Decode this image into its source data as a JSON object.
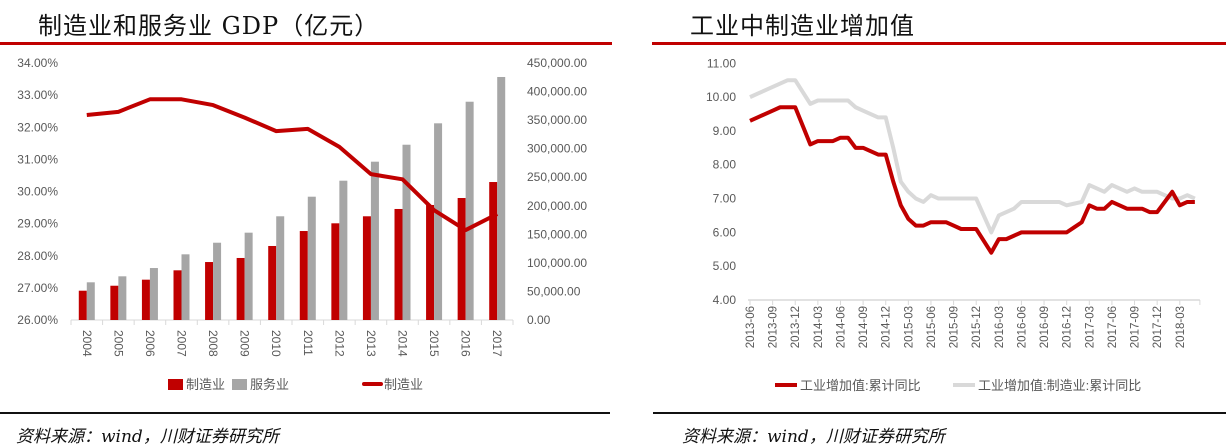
{
  "left_panel": {
    "title": "制造业和服务业 GDP（亿元）",
    "source": "资料来源：wind，川财证券研究所"
  },
  "right_panel": {
    "title": "工业中制造业增加值",
    "source": "资料来源：wind，川财证券研究所"
  },
  "colors": {
    "red": "#c00000",
    "grey": "#a6a6a6",
    "light_grey": "#d9d9d9"
  },
  "chart_data": [
    {
      "type": "bar",
      "title": "制造业和服务业 GDP（亿元）",
      "categories": [
        "2004",
        "2005",
        "2006",
        "2007",
        "2008",
        "2009",
        "2010",
        "2011",
        "2012",
        "2013",
        "2014",
        "2015",
        "2016",
        "2017"
      ],
      "series": [
        {
          "name": "制造业",
          "kind": "bar",
          "axis": "right",
          "values": [
            51300,
            60000,
            70600,
            87000,
            101500,
            108600,
            129600,
            155800,
            169300,
            181600,
            194400,
            201400,
            213600,
            241600
          ]
        },
        {
          "name": "服务业",
          "kind": "bar",
          "axis": "right",
          "values": [
            66000,
            76500,
            91000,
            115000,
            135300,
            152900,
            181600,
            215900,
            243900,
            277200,
            306900,
            344400,
            382200,
            425500
          ]
        },
        {
          "name": "制造业",
          "kind": "line",
          "axis": "left",
          "values": [
            32.38,
            32.48,
            32.87,
            32.87,
            32.69,
            32.3,
            31.88,
            31.95,
            31.39,
            30.54,
            30.38,
            29.42,
            28.8,
            29.3
          ]
        }
      ],
      "left_axis": {
        "ylim": [
          26,
          34
        ],
        "ticks": [
          "26.00%",
          "27.00%",
          "28.00%",
          "29.00%",
          "30.00%",
          "31.00%",
          "32.00%",
          "33.00%",
          "34.00%"
        ]
      },
      "right_axis": {
        "ylim": [
          0,
          450000
        ],
        "ticks": [
          "0.00",
          "50,000.00",
          "100,000.00",
          "150,000.00",
          "200,000.00",
          "250,000.00",
          "300,000.00",
          "350,000.00",
          "400,000.00",
          "450,000.00"
        ]
      },
      "legend": "bottom"
    },
    {
      "type": "line",
      "title": "工业中制造业增加值",
      "x": [
        "2013-06",
        "2013-07",
        "2013-08",
        "2013-09",
        "2013-10",
        "2013-11",
        "2013-12",
        "2014-01",
        "2014-02",
        "2014-03",
        "2014-04",
        "2014-05",
        "2014-06",
        "2014-07",
        "2014-08",
        "2014-09",
        "2014-10",
        "2014-11",
        "2014-12",
        "2015-01",
        "2015-02",
        "2015-03",
        "2015-04",
        "2015-05",
        "2015-06",
        "2015-07",
        "2015-08",
        "2015-09",
        "2015-10",
        "2015-11",
        "2015-12",
        "2016-01",
        "2016-02",
        "2016-03",
        "2016-04",
        "2016-05",
        "2016-06",
        "2016-07",
        "2016-08",
        "2016-09",
        "2016-10",
        "2016-11",
        "2016-12",
        "2017-01",
        "2017-02",
        "2017-03",
        "2017-04",
        "2017-05",
        "2017-06",
        "2017-07",
        "2017-08",
        "2017-09",
        "2017-10",
        "2017-11",
        "2017-12",
        "2018-01",
        "2018-02",
        "2018-03",
        "2018-04",
        "2018-05"
      ],
      "x_tick_labels": [
        "2013-06",
        "2013-09",
        "2013-12",
        "2014-03",
        "2014-06",
        "2014-09",
        "2014-12",
        "2015-03",
        "2015-06",
        "2015-09",
        "2015-12",
        "2016-03",
        "2016-06",
        "2016-09",
        "2016-12",
        "2017-03",
        "2017-06",
        "2017-09",
        "2017-12",
        "2018-03"
      ],
      "series": [
        {
          "name": "工业增加值:累计同比",
          "values": [
            9.3,
            9.4,
            9.5,
            9.6,
            9.7,
            9.7,
            9.7,
            9.15,
            8.6,
            8.7,
            8.7,
            8.7,
            8.8,
            8.8,
            8.5,
            8.5,
            8.4,
            8.3,
            8.3,
            7.5,
            6.8,
            6.4,
            6.2,
            6.2,
            6.3,
            6.3,
            6.3,
            6.2,
            6.1,
            6.1,
            6.1,
            5.75,
            5.4,
            5.8,
            5.8,
            5.9,
            6.0,
            6.0,
            6.0,
            6.0,
            6.0,
            6.0,
            6.0,
            6.15,
            6.3,
            6.8,
            6.7,
            6.7,
            6.9,
            6.8,
            6.7,
            6.7,
            6.7,
            6.6,
            6.6,
            6.9,
            7.2,
            6.8,
            6.9,
            6.9
          ]
        },
        {
          "name": "工业增加值:制造业:累计同比",
          "values": [
            10.0,
            10.1,
            10.2,
            10.3,
            10.4,
            10.5,
            10.5,
            10.15,
            9.8,
            9.9,
            9.9,
            9.9,
            9.9,
            9.9,
            9.7,
            9.6,
            9.5,
            9.4,
            9.4,
            8.5,
            7.5,
            7.2,
            7.0,
            6.9,
            7.1,
            7.0,
            7.0,
            7.0,
            7.0,
            7.0,
            7.0,
            6.5,
            6.0,
            6.5,
            6.6,
            6.7,
            6.9,
            6.9,
            6.9,
            6.9,
            6.9,
            6.9,
            6.8,
            6.85,
            6.9,
            7.4,
            7.3,
            7.2,
            7.4,
            7.3,
            7.2,
            7.3,
            7.2,
            7.2,
            7.2,
            7.1,
            7.0,
            7.0,
            7.1,
            7.0
          ]
        }
      ],
      "ylim": [
        4,
        11
      ],
      "y_ticks": [
        "4.00",
        "5.00",
        "6.00",
        "7.00",
        "8.00",
        "9.00",
        "10.00",
        "11.00"
      ],
      "legend": "bottom"
    }
  ]
}
